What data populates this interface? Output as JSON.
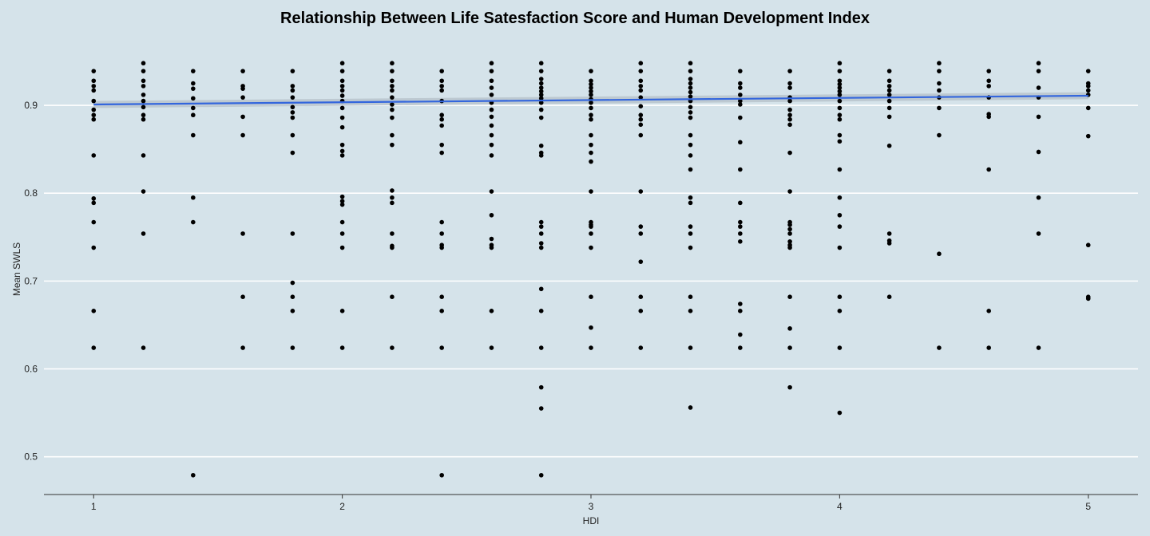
{
  "chart_data": {
    "type": "scatter",
    "title": "Relationship Between Life Satesfaction Score and Human Development Index",
    "xlabel": "HDI",
    "ylabel": "Mean SWLS",
    "xlim": [
      0.8,
      5.2
    ],
    "ylim": [
      0.457,
      0.97
    ],
    "xticks": [
      1,
      2,
      3,
      4,
      5
    ],
    "yticks": [
      0.5,
      0.6,
      0.7,
      0.8,
      0.9
    ],
    "grid": "horizontal",
    "colors": {
      "background": "#d5e3ea",
      "grid": "#ffffff",
      "points": "#000000",
      "trend": "#3366dd",
      "band": "#b9c4cc"
    },
    "trend_line": {
      "x": [
        1,
        5
      ],
      "y": [
        0.901,
        0.911
      ]
    },
    "points": [
      {
        "x": 1.0,
        "y": 0.939
      },
      {
        "x": 1.0,
        "y": 0.928
      },
      {
        "x": 1.0,
        "y": 0.922
      },
      {
        "x": 1.0,
        "y": 0.917
      },
      {
        "x": 1.0,
        "y": 0.905
      },
      {
        "x": 1.0,
        "y": 0.895
      },
      {
        "x": 1.0,
        "y": 0.889
      },
      {
        "x": 1.0,
        "y": 0.884
      },
      {
        "x": 1.0,
        "y": 0.843
      },
      {
        "x": 1.0,
        "y": 0.794
      },
      {
        "x": 1.0,
        "y": 0.789
      },
      {
        "x": 1.0,
        "y": 0.767
      },
      {
        "x": 1.0,
        "y": 0.738
      },
      {
        "x": 1.0,
        "y": 0.666
      },
      {
        "x": 1.0,
        "y": 0.624
      },
      {
        "x": 1.2,
        "y": 0.948
      },
      {
        "x": 1.2,
        "y": 0.939
      },
      {
        "x": 1.2,
        "y": 0.928
      },
      {
        "x": 1.2,
        "y": 0.922
      },
      {
        "x": 1.2,
        "y": 0.912
      },
      {
        "x": 1.2,
        "y": 0.905
      },
      {
        "x": 1.2,
        "y": 0.898
      },
      {
        "x": 1.2,
        "y": 0.889
      },
      {
        "x": 1.2,
        "y": 0.884
      },
      {
        "x": 1.2,
        "y": 0.843
      },
      {
        "x": 1.2,
        "y": 0.802
      },
      {
        "x": 1.2,
        "y": 0.754
      },
      {
        "x": 1.2,
        "y": 0.624
      },
      {
        "x": 1.4,
        "y": 0.939
      },
      {
        "x": 1.4,
        "y": 0.925
      },
      {
        "x": 1.4,
        "y": 0.919
      },
      {
        "x": 1.4,
        "y": 0.908
      },
      {
        "x": 1.4,
        "y": 0.897
      },
      {
        "x": 1.4,
        "y": 0.889
      },
      {
        "x": 1.4,
        "y": 0.866
      },
      {
        "x": 1.4,
        "y": 0.795
      },
      {
        "x": 1.4,
        "y": 0.767
      },
      {
        "x": 1.4,
        "y": 0.479
      },
      {
        "x": 1.6,
        "y": 0.939
      },
      {
        "x": 1.6,
        "y": 0.922
      },
      {
        "x": 1.6,
        "y": 0.919
      },
      {
        "x": 1.6,
        "y": 0.909
      },
      {
        "x": 1.6,
        "y": 0.887
      },
      {
        "x": 1.6,
        "y": 0.866
      },
      {
        "x": 1.6,
        "y": 0.754
      },
      {
        "x": 1.6,
        "y": 0.682
      },
      {
        "x": 1.6,
        "y": 0.624
      },
      {
        "x": 1.8,
        "y": 0.939
      },
      {
        "x": 1.8,
        "y": 0.922
      },
      {
        "x": 1.8,
        "y": 0.917
      },
      {
        "x": 1.8,
        "y": 0.909
      },
      {
        "x": 1.8,
        "y": 0.898
      },
      {
        "x": 1.8,
        "y": 0.892
      },
      {
        "x": 1.8,
        "y": 0.886
      },
      {
        "x": 1.8,
        "y": 0.866
      },
      {
        "x": 1.8,
        "y": 0.846
      },
      {
        "x": 1.8,
        "y": 0.754
      },
      {
        "x": 1.8,
        "y": 0.698
      },
      {
        "x": 1.8,
        "y": 0.682
      },
      {
        "x": 1.8,
        "y": 0.666
      },
      {
        "x": 1.8,
        "y": 0.624
      },
      {
        "x": 2.0,
        "y": 0.948
      },
      {
        "x": 2.0,
        "y": 0.939
      },
      {
        "x": 2.0,
        "y": 0.928
      },
      {
        "x": 2.0,
        "y": 0.922
      },
      {
        "x": 2.0,
        "y": 0.917
      },
      {
        "x": 2.0,
        "y": 0.911
      },
      {
        "x": 2.0,
        "y": 0.905
      },
      {
        "x": 2.0,
        "y": 0.897
      },
      {
        "x": 2.0,
        "y": 0.886
      },
      {
        "x": 2.0,
        "y": 0.875
      },
      {
        "x": 2.0,
        "y": 0.855
      },
      {
        "x": 2.0,
        "y": 0.848
      },
      {
        "x": 2.0,
        "y": 0.843
      },
      {
        "x": 2.0,
        "y": 0.796
      },
      {
        "x": 2.0,
        "y": 0.791
      },
      {
        "x": 2.0,
        "y": 0.787
      },
      {
        "x": 2.0,
        "y": 0.767
      },
      {
        "x": 2.0,
        "y": 0.754
      },
      {
        "x": 2.0,
        "y": 0.738
      },
      {
        "x": 2.0,
        "y": 0.666
      },
      {
        "x": 2.0,
        "y": 0.624
      },
      {
        "x": 2.2,
        "y": 0.948
      },
      {
        "x": 2.2,
        "y": 0.939
      },
      {
        "x": 2.2,
        "y": 0.928
      },
      {
        "x": 2.2,
        "y": 0.922
      },
      {
        "x": 2.2,
        "y": 0.917
      },
      {
        "x": 2.2,
        "y": 0.909
      },
      {
        "x": 2.2,
        "y": 0.901
      },
      {
        "x": 2.2,
        "y": 0.895
      },
      {
        "x": 2.2,
        "y": 0.886
      },
      {
        "x": 2.2,
        "y": 0.866
      },
      {
        "x": 2.2,
        "y": 0.855
      },
      {
        "x": 2.2,
        "y": 0.803
      },
      {
        "x": 2.2,
        "y": 0.795
      },
      {
        "x": 2.2,
        "y": 0.789
      },
      {
        "x": 2.2,
        "y": 0.754
      },
      {
        "x": 2.2,
        "y": 0.74
      },
      {
        "x": 2.2,
        "y": 0.738
      },
      {
        "x": 2.2,
        "y": 0.682
      },
      {
        "x": 2.2,
        "y": 0.624
      },
      {
        "x": 2.4,
        "y": 0.939
      },
      {
        "x": 2.4,
        "y": 0.928
      },
      {
        "x": 2.4,
        "y": 0.922
      },
      {
        "x": 2.4,
        "y": 0.917
      },
      {
        "x": 2.4,
        "y": 0.905
      },
      {
        "x": 2.4,
        "y": 0.889
      },
      {
        "x": 2.4,
        "y": 0.884
      },
      {
        "x": 2.4,
        "y": 0.877
      },
      {
        "x": 2.4,
        "y": 0.855
      },
      {
        "x": 2.4,
        "y": 0.846
      },
      {
        "x": 2.4,
        "y": 0.767
      },
      {
        "x": 2.4,
        "y": 0.754
      },
      {
        "x": 2.4,
        "y": 0.741
      },
      {
        "x": 2.4,
        "y": 0.738
      },
      {
        "x": 2.4,
        "y": 0.682
      },
      {
        "x": 2.4,
        "y": 0.666
      },
      {
        "x": 2.4,
        "y": 0.624
      },
      {
        "x": 2.4,
        "y": 0.479
      },
      {
        "x": 2.6,
        "y": 0.948
      },
      {
        "x": 2.6,
        "y": 0.939
      },
      {
        "x": 2.6,
        "y": 0.928
      },
      {
        "x": 2.6,
        "y": 0.92
      },
      {
        "x": 2.6,
        "y": 0.912
      },
      {
        "x": 2.6,
        "y": 0.903
      },
      {
        "x": 2.6,
        "y": 0.895
      },
      {
        "x": 2.6,
        "y": 0.887
      },
      {
        "x": 2.6,
        "y": 0.877
      },
      {
        "x": 2.6,
        "y": 0.866
      },
      {
        "x": 2.6,
        "y": 0.855
      },
      {
        "x": 2.6,
        "y": 0.843
      },
      {
        "x": 2.6,
        "y": 0.802
      },
      {
        "x": 2.6,
        "y": 0.775
      },
      {
        "x": 2.6,
        "y": 0.748
      },
      {
        "x": 2.6,
        "y": 0.741
      },
      {
        "x": 2.6,
        "y": 0.738
      },
      {
        "x": 2.6,
        "y": 0.666
      },
      {
        "x": 2.6,
        "y": 0.624
      },
      {
        "x": 2.8,
        "y": 0.948
      },
      {
        "x": 2.8,
        "y": 0.939
      },
      {
        "x": 2.8,
        "y": 0.93
      },
      {
        "x": 2.8,
        "y": 0.925
      },
      {
        "x": 2.8,
        "y": 0.92
      },
      {
        "x": 2.8,
        "y": 0.916
      },
      {
        "x": 2.8,
        "y": 0.912
      },
      {
        "x": 2.8,
        "y": 0.908
      },
      {
        "x": 2.8,
        "y": 0.903
      },
      {
        "x": 2.8,
        "y": 0.895
      },
      {
        "x": 2.8,
        "y": 0.886
      },
      {
        "x": 2.8,
        "y": 0.854
      },
      {
        "x": 2.8,
        "y": 0.846
      },
      {
        "x": 2.8,
        "y": 0.843
      },
      {
        "x": 2.8,
        "y": 0.767
      },
      {
        "x": 2.8,
        "y": 0.762
      },
      {
        "x": 2.8,
        "y": 0.754
      },
      {
        "x": 2.8,
        "y": 0.743
      },
      {
        "x": 2.8,
        "y": 0.738
      },
      {
        "x": 2.8,
        "y": 0.691
      },
      {
        "x": 2.8,
        "y": 0.666
      },
      {
        "x": 2.8,
        "y": 0.624
      },
      {
        "x": 2.8,
        "y": 0.579
      },
      {
        "x": 2.8,
        "y": 0.555
      },
      {
        "x": 2.8,
        "y": 0.479
      },
      {
        "x": 3.0,
        "y": 0.939
      },
      {
        "x": 3.0,
        "y": 0.928
      },
      {
        "x": 3.0,
        "y": 0.924
      },
      {
        "x": 3.0,
        "y": 0.92
      },
      {
        "x": 3.0,
        "y": 0.916
      },
      {
        "x": 3.0,
        "y": 0.912
      },
      {
        "x": 3.0,
        "y": 0.907
      },
      {
        "x": 3.0,
        "y": 0.903
      },
      {
        "x": 3.0,
        "y": 0.897
      },
      {
        "x": 3.0,
        "y": 0.889
      },
      {
        "x": 3.0,
        "y": 0.884
      },
      {
        "x": 3.0,
        "y": 0.866
      },
      {
        "x": 3.0,
        "y": 0.855
      },
      {
        "x": 3.0,
        "y": 0.846
      },
      {
        "x": 3.0,
        "y": 0.836
      },
      {
        "x": 3.0,
        "y": 0.802
      },
      {
        "x": 3.0,
        "y": 0.767
      },
      {
        "x": 3.0,
        "y": 0.764
      },
      {
        "x": 3.0,
        "y": 0.762
      },
      {
        "x": 3.0,
        "y": 0.754
      },
      {
        "x": 3.0,
        "y": 0.738
      },
      {
        "x": 3.0,
        "y": 0.682
      },
      {
        "x": 3.0,
        "y": 0.647
      },
      {
        "x": 3.0,
        "y": 0.624
      },
      {
        "x": 3.2,
        "y": 0.948
      },
      {
        "x": 3.2,
        "y": 0.939
      },
      {
        "x": 3.2,
        "y": 0.928
      },
      {
        "x": 3.2,
        "y": 0.922
      },
      {
        "x": 3.2,
        "y": 0.917
      },
      {
        "x": 3.2,
        "y": 0.909
      },
      {
        "x": 3.2,
        "y": 0.899
      },
      {
        "x": 3.2,
        "y": 0.889
      },
      {
        "x": 3.2,
        "y": 0.884
      },
      {
        "x": 3.2,
        "y": 0.878
      },
      {
        "x": 3.2,
        "y": 0.866
      },
      {
        "x": 3.2,
        "y": 0.802
      },
      {
        "x": 3.2,
        "y": 0.762
      },
      {
        "x": 3.2,
        "y": 0.754
      },
      {
        "x": 3.2,
        "y": 0.722
      },
      {
        "x": 3.2,
        "y": 0.682
      },
      {
        "x": 3.2,
        "y": 0.666
      },
      {
        "x": 3.2,
        "y": 0.624
      },
      {
        "x": 3.4,
        "y": 0.948
      },
      {
        "x": 3.4,
        "y": 0.939
      },
      {
        "x": 3.4,
        "y": 0.93
      },
      {
        "x": 3.4,
        "y": 0.925
      },
      {
        "x": 3.4,
        "y": 0.92
      },
      {
        "x": 3.4,
        "y": 0.915
      },
      {
        "x": 3.4,
        "y": 0.91
      },
      {
        "x": 3.4,
        "y": 0.905
      },
      {
        "x": 3.4,
        "y": 0.898
      },
      {
        "x": 3.4,
        "y": 0.892
      },
      {
        "x": 3.4,
        "y": 0.886
      },
      {
        "x": 3.4,
        "y": 0.866
      },
      {
        "x": 3.4,
        "y": 0.855
      },
      {
        "x": 3.4,
        "y": 0.843
      },
      {
        "x": 3.4,
        "y": 0.827
      },
      {
        "x": 3.4,
        "y": 0.795
      },
      {
        "x": 3.4,
        "y": 0.789
      },
      {
        "x": 3.4,
        "y": 0.762
      },
      {
        "x": 3.4,
        "y": 0.754
      },
      {
        "x": 3.4,
        "y": 0.738
      },
      {
        "x": 3.4,
        "y": 0.682
      },
      {
        "x": 3.4,
        "y": 0.666
      },
      {
        "x": 3.4,
        "y": 0.624
      },
      {
        "x": 3.4,
        "y": 0.556
      },
      {
        "x": 3.6,
        "y": 0.939
      },
      {
        "x": 3.6,
        "y": 0.925
      },
      {
        "x": 3.6,
        "y": 0.92
      },
      {
        "x": 3.6,
        "y": 0.912
      },
      {
        "x": 3.6,
        "y": 0.905
      },
      {
        "x": 3.6,
        "y": 0.901
      },
      {
        "x": 3.6,
        "y": 0.886
      },
      {
        "x": 3.6,
        "y": 0.858
      },
      {
        "x": 3.6,
        "y": 0.827
      },
      {
        "x": 3.6,
        "y": 0.789
      },
      {
        "x": 3.6,
        "y": 0.767
      },
      {
        "x": 3.6,
        "y": 0.762
      },
      {
        "x": 3.6,
        "y": 0.754
      },
      {
        "x": 3.6,
        "y": 0.745
      },
      {
        "x": 3.6,
        "y": 0.674
      },
      {
        "x": 3.6,
        "y": 0.666
      },
      {
        "x": 3.6,
        "y": 0.639
      },
      {
        "x": 3.6,
        "y": 0.624
      },
      {
        "x": 3.8,
        "y": 0.939
      },
      {
        "x": 3.8,
        "y": 0.925
      },
      {
        "x": 3.8,
        "y": 0.92
      },
      {
        "x": 3.8,
        "y": 0.909
      },
      {
        "x": 3.8,
        "y": 0.905
      },
      {
        "x": 3.8,
        "y": 0.895
      },
      {
        "x": 3.8,
        "y": 0.889
      },
      {
        "x": 3.8,
        "y": 0.884
      },
      {
        "x": 3.8,
        "y": 0.878
      },
      {
        "x": 3.8,
        "y": 0.846
      },
      {
        "x": 3.8,
        "y": 0.802
      },
      {
        "x": 3.8,
        "y": 0.767
      },
      {
        "x": 3.8,
        "y": 0.764
      },
      {
        "x": 3.8,
        "y": 0.759
      },
      {
        "x": 3.8,
        "y": 0.754
      },
      {
        "x": 3.8,
        "y": 0.745
      },
      {
        "x": 3.8,
        "y": 0.741
      },
      {
        "x": 3.8,
        "y": 0.738
      },
      {
        "x": 3.8,
        "y": 0.682
      },
      {
        "x": 3.8,
        "y": 0.646
      },
      {
        "x": 3.8,
        "y": 0.624
      },
      {
        "x": 3.8,
        "y": 0.579
      },
      {
        "x": 4.0,
        "y": 0.948
      },
      {
        "x": 4.0,
        "y": 0.939
      },
      {
        "x": 4.0,
        "y": 0.928
      },
      {
        "x": 4.0,
        "y": 0.924
      },
      {
        "x": 4.0,
        "y": 0.92
      },
      {
        "x": 4.0,
        "y": 0.916
      },
      {
        "x": 4.0,
        "y": 0.912
      },
      {
        "x": 4.0,
        "y": 0.905
      },
      {
        "x": 4.0,
        "y": 0.897
      },
      {
        "x": 4.0,
        "y": 0.889
      },
      {
        "x": 4.0,
        "y": 0.884
      },
      {
        "x": 4.0,
        "y": 0.866
      },
      {
        "x": 4.0,
        "y": 0.859
      },
      {
        "x": 4.0,
        "y": 0.827
      },
      {
        "x": 4.0,
        "y": 0.795
      },
      {
        "x": 4.0,
        "y": 0.775
      },
      {
        "x": 4.0,
        "y": 0.762
      },
      {
        "x": 4.0,
        "y": 0.738
      },
      {
        "x": 4.0,
        "y": 0.682
      },
      {
        "x": 4.0,
        "y": 0.666
      },
      {
        "x": 4.0,
        "y": 0.624
      },
      {
        "x": 4.0,
        "y": 0.55
      },
      {
        "x": 4.2,
        "y": 0.939
      },
      {
        "x": 4.2,
        "y": 0.928
      },
      {
        "x": 4.2,
        "y": 0.922
      },
      {
        "x": 4.2,
        "y": 0.917
      },
      {
        "x": 4.2,
        "y": 0.912
      },
      {
        "x": 4.2,
        "y": 0.905
      },
      {
        "x": 4.2,
        "y": 0.897
      },
      {
        "x": 4.2,
        "y": 0.887
      },
      {
        "x": 4.2,
        "y": 0.854
      },
      {
        "x": 4.2,
        "y": 0.754
      },
      {
        "x": 4.2,
        "y": 0.746
      },
      {
        "x": 4.2,
        "y": 0.743
      },
      {
        "x": 4.2,
        "y": 0.682
      },
      {
        "x": 4.4,
        "y": 0.948
      },
      {
        "x": 4.4,
        "y": 0.939
      },
      {
        "x": 4.4,
        "y": 0.925
      },
      {
        "x": 4.4,
        "y": 0.917
      },
      {
        "x": 4.4,
        "y": 0.909
      },
      {
        "x": 4.4,
        "y": 0.897
      },
      {
        "x": 4.4,
        "y": 0.866
      },
      {
        "x": 4.4,
        "y": 0.731
      },
      {
        "x": 4.4,
        "y": 0.624
      },
      {
        "x": 4.6,
        "y": 0.939
      },
      {
        "x": 4.6,
        "y": 0.928
      },
      {
        "x": 4.6,
        "y": 0.922
      },
      {
        "x": 4.6,
        "y": 0.909
      },
      {
        "x": 4.6,
        "y": 0.89
      },
      {
        "x": 4.6,
        "y": 0.887
      },
      {
        "x": 4.6,
        "y": 0.827
      },
      {
        "x": 4.6,
        "y": 0.666
      },
      {
        "x": 4.6,
        "y": 0.624
      },
      {
        "x": 4.8,
        "y": 0.948
      },
      {
        "x": 4.8,
        "y": 0.939
      },
      {
        "x": 4.8,
        "y": 0.92
      },
      {
        "x": 4.8,
        "y": 0.909
      },
      {
        "x": 4.8,
        "y": 0.887
      },
      {
        "x": 4.8,
        "y": 0.847
      },
      {
        "x": 4.8,
        "y": 0.795
      },
      {
        "x": 4.8,
        "y": 0.754
      },
      {
        "x": 4.8,
        "y": 0.624
      },
      {
        "x": 5.0,
        "y": 0.939
      },
      {
        "x": 5.0,
        "y": 0.925
      },
      {
        "x": 5.0,
        "y": 0.922
      },
      {
        "x": 5.0,
        "y": 0.917
      },
      {
        "x": 5.0,
        "y": 0.912
      },
      {
        "x": 5.0,
        "y": 0.897
      },
      {
        "x": 5.0,
        "y": 0.865
      },
      {
        "x": 5.0,
        "y": 0.741
      },
      {
        "x": 5.0,
        "y": 0.682
      },
      {
        "x": 5.0,
        "y": 0.68
      }
    ]
  }
}
